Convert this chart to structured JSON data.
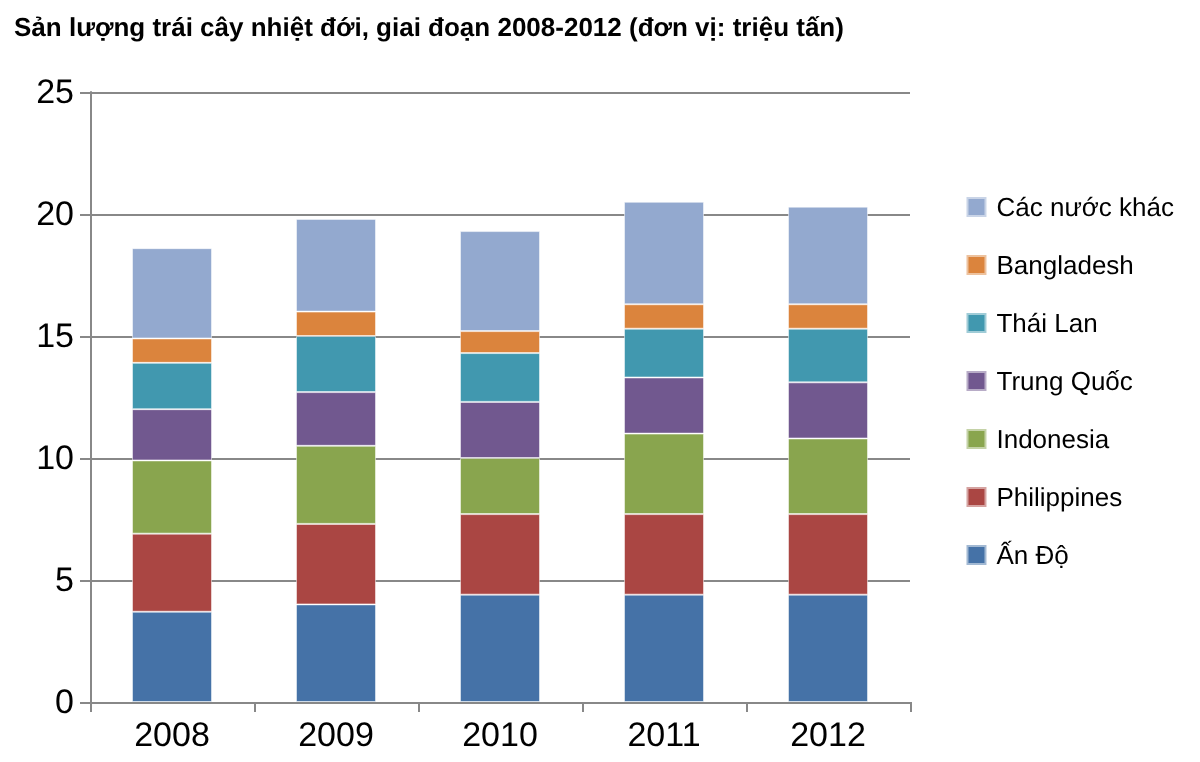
{
  "chart_data": {
    "type": "bar",
    "stacked": true,
    "title": "Sản lượng trái cây nhiệt đới, giai đoạn 2008-2012 (đơn vị: triệu tấn)",
    "categories": [
      "2008",
      "2009",
      "2010",
      "2011",
      "2012"
    ],
    "series": [
      {
        "name": "Ấn Độ",
        "color": "#4572a7",
        "values": [
          3.7,
          4.0,
          4.4,
          4.4,
          4.4
        ]
      },
      {
        "name": "Philippines",
        "color": "#aa4643",
        "values": [
          3.2,
          3.3,
          3.3,
          3.3,
          3.3
        ]
      },
      {
        "name": "Indonesia",
        "color": "#89a54e",
        "values": [
          3.0,
          3.2,
          2.3,
          3.3,
          3.1
        ]
      },
      {
        "name": "Trung Quốc",
        "color": "#71588f",
        "values": [
          2.1,
          2.2,
          2.3,
          2.3,
          2.3
        ]
      },
      {
        "name": "Thái Lan",
        "color": "#4198af",
        "values": [
          1.9,
          2.3,
          2.0,
          2.0,
          2.2
        ]
      },
      {
        "name": "Bangladesh",
        "color": "#db843d",
        "values": [
          1.0,
          1.0,
          0.9,
          1.0,
          1.0
        ]
      },
      {
        "name": "Các nước khác",
        "color": "#93a9cf",
        "values": [
          3.7,
          3.8,
          4.1,
          4.2,
          4.0
        ]
      }
    ],
    "ylim": [
      0,
      25
    ],
    "yticks": [
      0,
      5,
      10,
      15,
      20,
      25
    ],
    "grid": "y",
    "legend": "right"
  }
}
